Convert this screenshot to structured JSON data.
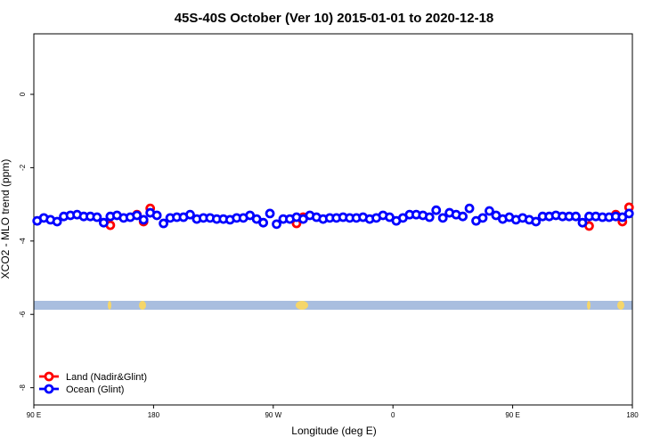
{
  "chart_data": {
    "type": "scatter",
    "title": "45S-40S October (Ver 10)   2015-01-01 to 2020-12-18",
    "x_label": "Longitude (deg E)",
    "y_label": "XCO2 - MLO trend (ppm)",
    "xlim": [
      90,
      540
    ],
    "ylim": [
      -8.47,
      1.65
    ],
    "xticks": [
      {
        "value": 90,
        "label": "90 E"
      },
      180,
      {
        "value": 270,
        "label": "90 W"
      },
      {
        "value": 360,
        "label": "0"
      },
      {
        "value": 450,
        "label": "90 E"
      },
      {
        "value": 540,
        "label": "180"
      }
    ],
    "yticks": [
      -8,
      -6,
      -4,
      -2,
      0
    ],
    "legend": "bottom-left",
    "series": [
      {
        "name": "Land (Nadir&Glint)",
        "color": "#ff0000",
        "x": [
          147.5,
          167.5,
          172.5,
          177.5,
          287.5,
          292.5,
          507.5,
          527.5,
          532.5,
          537.5
        ],
        "values": [
          -3.57,
          -3.28,
          -3.47,
          -3.11,
          -3.52,
          -3.35,
          -3.59,
          -3.28,
          -3.47,
          -3.08
        ]
      },
      {
        "name": "Ocean (Glint)",
        "color": "#0000ff",
        "x": [
          92.5,
          97.5,
          102.5,
          107.5,
          112.5,
          117.5,
          122.5,
          127.5,
          132.5,
          137.5,
          142.5,
          147.5,
          152.5,
          157.5,
          162.5,
          167.5,
          172.5,
          177.5,
          182.5,
          187.5,
          192.5,
          197.5,
          202.5,
          207.5,
          212.5,
          217.5,
          222.5,
          227.5,
          232.5,
          237.5,
          242.5,
          247.5,
          252.5,
          257.5,
          262.5,
          267.5,
          272.5,
          277.5,
          282.5,
          287.5,
          292.5,
          297.5,
          302.5,
          307.5,
          312.5,
          317.5,
          322.5,
          327.5,
          332.5,
          337.5,
          342.5,
          347.5,
          352.5,
          357.5,
          362.5,
          367.5,
          372.5,
          377.5,
          382.5,
          387.5,
          392.5,
          397.5,
          402.5,
          407.5,
          412.5,
          417.5,
          422.5,
          427.5,
          432.5,
          437.5,
          442.5,
          447.5,
          452.5,
          457.5,
          462.5,
          467.5,
          472.5,
          477.5,
          482.5,
          487.5,
          492.5,
          497.5,
          502.5,
          507.5,
          512.5,
          517.5,
          522.5,
          527.5,
          532.5,
          537.5
        ],
        "values": [
          -3.45,
          -3.37,
          -3.42,
          -3.47,
          -3.33,
          -3.3,
          -3.28,
          -3.33,
          -3.33,
          -3.35,
          -3.5,
          -3.33,
          -3.3,
          -3.37,
          -3.35,
          -3.3,
          -3.42,
          -3.23,
          -3.3,
          -3.52,
          -3.37,
          -3.35,
          -3.35,
          -3.28,
          -3.4,
          -3.37,
          -3.37,
          -3.4,
          -3.4,
          -3.42,
          -3.37,
          -3.37,
          -3.3,
          -3.4,
          -3.5,
          -3.25,
          -3.54,
          -3.4,
          -3.4,
          -3.35,
          -3.4,
          -3.3,
          -3.35,
          -3.4,
          -3.37,
          -3.37,
          -3.35,
          -3.37,
          -3.37,
          -3.35,
          -3.4,
          -3.37,
          -3.3,
          -3.35,
          -3.45,
          -3.37,
          -3.28,
          -3.28,
          -3.3,
          -3.35,
          -3.16,
          -3.37,
          -3.23,
          -3.28,
          -3.33,
          -3.11,
          -3.45,
          -3.37,
          -3.18,
          -3.3,
          -3.4,
          -3.35,
          -3.42,
          -3.37,
          -3.42,
          -3.47,
          -3.33,
          -3.33,
          -3.3,
          -3.33,
          -3.33,
          -3.33,
          -3.5,
          -3.33,
          -3.33,
          -3.35,
          -3.35,
          -3.33,
          -3.35,
          -3.25
        ]
      }
    ]
  }
}
